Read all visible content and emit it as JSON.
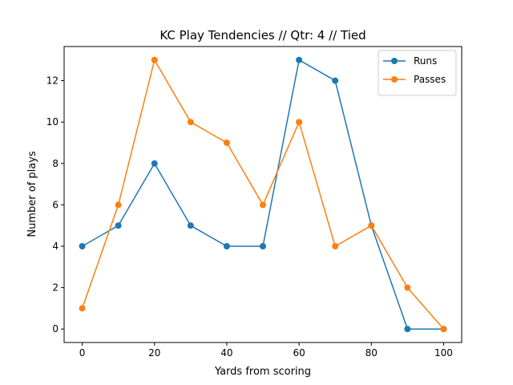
{
  "chart_data": {
    "type": "line",
    "title": "KC Play Tendencies // Qtr: 4 // Tied",
    "xlabel": "Yards from scoring",
    "ylabel": "Number of plays",
    "x": [
      0,
      10,
      20,
      30,
      40,
      50,
      60,
      70,
      80,
      90,
      100
    ],
    "xlim": [
      -5,
      105
    ],
    "ylim": [
      -0.65,
      13.65
    ],
    "xticks": [
      0,
      20,
      40,
      60,
      80,
      100
    ],
    "yticks": [
      0,
      2,
      4,
      6,
      8,
      10,
      12
    ],
    "grid": false,
    "legend_position": "top-right",
    "series": [
      {
        "name": "Runs",
        "color": "#1f77b4",
        "marker": "circle",
        "values": [
          4,
          5,
          8,
          5,
          4,
          4,
          13,
          12,
          5,
          0,
          0
        ]
      },
      {
        "name": "Passes",
        "color": "#ff7f0e",
        "marker": "circle",
        "values": [
          1,
          6,
          13,
          10,
          9,
          6,
          10,
          4,
          5,
          2,
          0
        ]
      }
    ]
  }
}
